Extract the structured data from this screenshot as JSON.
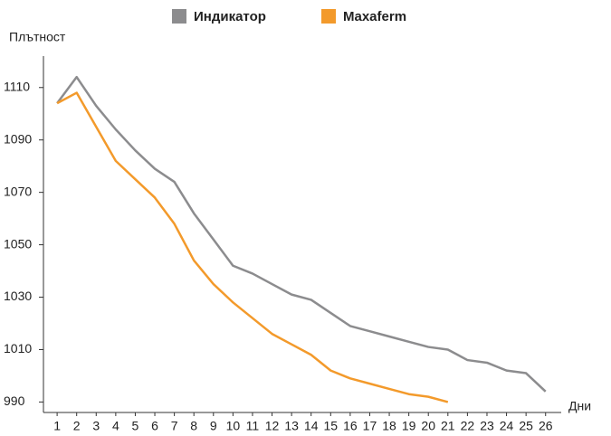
{
  "chart_data": {
    "type": "line",
    "y_label": "Плътност",
    "x_label": "Дни",
    "x": [
      1,
      2,
      3,
      4,
      5,
      6,
      7,
      8,
      9,
      10,
      11,
      12,
      13,
      14,
      15,
      16,
      17,
      18,
      19,
      20,
      21,
      22,
      23,
      24,
      25,
      26
    ],
    "series": [
      {
        "name": "Индикатор",
        "color": "#8c8c8e",
        "values": [
          1104,
          1114,
          1103,
          1094,
          1086,
          1079,
          1074,
          1062,
          1052,
          1042,
          1039,
          1035,
          1031,
          1029,
          1024,
          1019,
          1017,
          1015,
          1013,
          1011,
          1010,
          1006,
          1005,
          1002,
          1001,
          994
        ]
      },
      {
        "name": "Maxaferm",
        "color": "#f39a2b",
        "values": [
          1104,
          1108,
          1095,
          1082,
          1075,
          1068,
          1058,
          1044,
          1035,
          1028,
          1022,
          1016,
          1012,
          1008,
          1002,
          999,
          997,
          995,
          993,
          992,
          990,
          null,
          null,
          null,
          null,
          null
        ]
      }
    ],
    "xlim": [
      0.3,
      26.8
    ],
    "xticks": [
      1,
      2,
      3,
      4,
      5,
      6,
      7,
      8,
      9,
      10,
      11,
      12,
      13,
      14,
      15,
      16,
      17,
      18,
      19,
      20,
      21,
      22,
      23,
      24,
      25,
      26
    ],
    "ylim": [
      986,
      1122
    ],
    "yticks": [
      990,
      1010,
      1030,
      1050,
      1070,
      1090,
      1110
    ],
    "grid": false,
    "legend": "top"
  }
}
